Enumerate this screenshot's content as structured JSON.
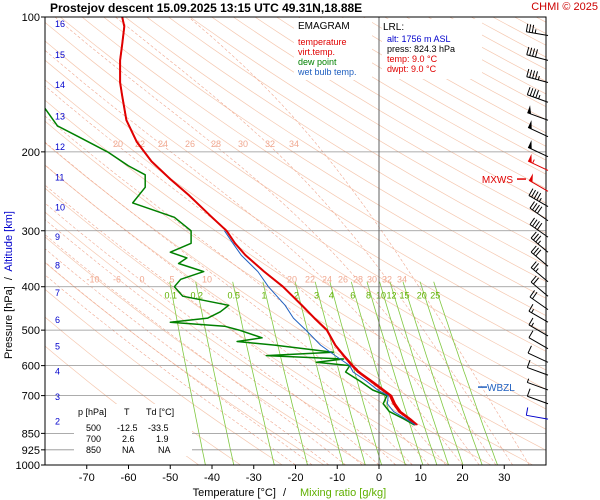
{
  "header": {
    "title": "Prostejov   descent   15.09.2025 13:15 UTC  49.31N,18.88E",
    "credit": "CHMI © 2025"
  },
  "legend": {
    "heading": "EMAGRAM",
    "items": [
      {
        "label": "temperature",
        "color": "#e00000"
      },
      {
        "label": "virt.temp.",
        "color": "#e00000"
      },
      {
        "label": "dew point",
        "color": "#008000"
      },
      {
        "label": "wet bulb temp.",
        "color": "#2060c0"
      }
    ]
  },
  "lrl": {
    "heading": "LRL:",
    "lines": [
      {
        "text": "alt: 1756 m ASL",
        "color": "#0000cc"
      },
      {
        "text": "press: 824.3 hPa",
        "color": "#000000"
      },
      {
        "text": "temp: 9.0 °C",
        "color": "#e00000"
      },
      {
        "text": "dwpt: 9.0 °C",
        "color": "#e00000"
      }
    ]
  },
  "table": {
    "headers": [
      "p [hPa]",
      "T",
      "Td [°C]"
    ],
    "rows": [
      [
        "500",
        "-12.5",
        "-33.5"
      ],
      [
        "700",
        "2.6",
        "1.9"
      ],
      [
        "850",
        "NA",
        "NA"
      ]
    ]
  },
  "markers": {
    "mxws": "MXWS",
    "wbzl": "WBZL"
  },
  "chart_data": {
    "type": "line",
    "xlabel": "Temperature [°C]",
    "xlabel_sep": "/",
    "xlabel2": "Mixing ratio [g/kg]",
    "ylabel": "Pressure [hPa]",
    "ylabel_sep": "/",
    "ylabel2": "Altitude [km]",
    "xlim": [
      -80,
      40
    ],
    "ylim": [
      1000,
      100
    ],
    "yscale": "log",
    "x_ticks": [
      "-70",
      "-60",
      "-50",
      "-40",
      "-30",
      "-20",
      "-10",
      "0",
      "10",
      "20",
      "30"
    ],
    "x_tick_values": [
      -70,
      -60,
      -50,
      -40,
      -30,
      -20,
      -10,
      0,
      10,
      20,
      30
    ],
    "y_ticks": [
      "100",
      "200",
      "300",
      "400",
      "500",
      "600",
      "700",
      "850",
      "925",
      "1000"
    ],
    "y_tick_values": [
      100,
      200,
      300,
      400,
      500,
      600,
      700,
      850,
      925,
      1000
    ],
    "altitude_ticks": [
      "2",
      "3",
      "4",
      "5",
      "6",
      "7",
      "8",
      "9",
      "10",
      "11",
      "12",
      "13",
      "14",
      "15",
      "16"
    ],
    "altitude_pressures": [
      795,
      701,
      616,
      541,
      472,
      411,
      357,
      308,
      265,
      227,
      194,
      166,
      141,
      121,
      103
    ],
    "mixing_ratio_labels": [
      "0.1",
      "0.2",
      "0.5",
      "1",
      "2",
      "3",
      "4",
      "6",
      "8",
      "10",
      "12",
      "15",
      "20",
      "25"
    ],
    "mixing_ratio_values": [
      0.1,
      0.2,
      0.5,
      1,
      2,
      3,
      4,
      6,
      8,
      10,
      12,
      15,
      20,
      25
    ],
    "adiabat_labels_upper": [
      "20",
      "22",
      "24",
      "26",
      "28",
      "30",
      "32",
      "34"
    ],
    "adiabat_labels_lower": [
      "-10",
      "-6",
      "0",
      "5",
      "10",
      "20",
      "22",
      "24",
      "26",
      "28",
      "30",
      "32",
      "34"
    ],
    "series": [
      {
        "name": "temperature",
        "color": "#e00000",
        "points": [
          [
            814,
            8.8
          ],
          [
            790,
            7.2
          ],
          [
            760,
            4.8
          ],
          [
            730,
            3.5
          ],
          [
            700,
            2.6
          ],
          [
            680,
            0.8
          ],
          [
            650,
            -2.0
          ],
          [
            620,
            -5.0
          ],
          [
            600,
            -6.5
          ],
          [
            570,
            -8.5
          ],
          [
            540,
            -10.5
          ],
          [
            500,
            -12.5
          ],
          [
            470,
            -15.5
          ],
          [
            440,
            -18.5
          ],
          [
            400,
            -23.0
          ],
          [
            370,
            -27.5
          ],
          [
            340,
            -32.0
          ],
          [
            320,
            -34.5
          ],
          [
            300,
            -36.5
          ],
          [
            280,
            -40.0
          ],
          [
            250,
            -45.5
          ],
          [
            230,
            -50.0
          ],
          [
            210,
            -54.5
          ],
          [
            190,
            -58.0
          ],
          [
            170,
            -60.5
          ],
          [
            150,
            -61.5
          ],
          [
            140,
            -62.0
          ],
          [
            125,
            -62.0
          ],
          [
            115,
            -61.5
          ],
          [
            105,
            -61.0
          ],
          [
            100,
            -61.5
          ]
        ]
      },
      {
        "name": "virt.temp.",
        "color": "#e00000",
        "points": [
          [
            814,
            9.2
          ],
          [
            790,
            7.6
          ],
          [
            760,
            5.2
          ],
          [
            730,
            3.9
          ],
          [
            700,
            3.0
          ],
          [
            680,
            1.2
          ],
          [
            650,
            -1.6
          ],
          [
            620,
            -4.7
          ],
          [
            600,
            -6.2
          ],
          [
            570,
            -8.3
          ],
          [
            540,
            -10.4
          ],
          [
            500,
            -12.4
          ],
          [
            470,
            -15.4
          ],
          [
            440,
            -18.4
          ],
          [
            400,
            -23.0
          ],
          [
            370,
            -27.5
          ],
          [
            340,
            -32.0
          ],
          [
            320,
            -34.5
          ],
          [
            300,
            -36.5
          ],
          [
            280,
            -40.0
          ],
          [
            250,
            -45.5
          ],
          [
            230,
            -50.0
          ],
          [
            210,
            -54.5
          ],
          [
            190,
            -58.0
          ],
          [
            170,
            -60.5
          ],
          [
            150,
            -61.5
          ],
          [
            140,
            -62.0
          ],
          [
            125,
            -62.0
          ],
          [
            115,
            -61.5
          ],
          [
            105,
            -61.0
          ],
          [
            100,
            -61.5
          ]
        ]
      },
      {
        "name": "dew point",
        "color": "#008000",
        "points": [
          [
            814,
            8.5
          ],
          [
            790,
            6.0
          ],
          [
            760,
            2.5
          ],
          [
            730,
            1.0
          ],
          [
            700,
            1.9
          ],
          [
            680,
            -1.5
          ],
          [
            650,
            -4.5
          ],
          [
            620,
            -8.0
          ],
          [
            600,
            -7.0
          ],
          [
            590,
            -15.0
          ],
          [
            580,
            -8.5
          ],
          [
            570,
            -27.0
          ],
          [
            560,
            -11.0
          ],
          [
            540,
            -25.0
          ],
          [
            530,
            -34.0
          ],
          [
            520,
            -28.0
          ],
          [
            500,
            -33.5
          ],
          [
            490,
            -37.0
          ],
          [
            480,
            -50.0
          ],
          [
            470,
            -41.0
          ],
          [
            455,
            -38.0
          ],
          [
            440,
            -36.0
          ],
          [
            420,
            -47.0
          ],
          [
            400,
            -49.0
          ],
          [
            385,
            -47.5
          ],
          [
            370,
            -42.0
          ],
          [
            355,
            -48.0
          ],
          [
            345,
            -46.0
          ],
          [
            335,
            -50.0
          ],
          [
            320,
            -45.0
          ],
          [
            300,
            -45.0
          ],
          [
            280,
            -49.0
          ],
          [
            260,
            -59.0
          ],
          [
            240,
            -56.0
          ],
          [
            225,
            -56.0
          ],
          [
            215,
            -60.0
          ],
          [
            200,
            -65.0
          ],
          [
            185,
            -72.0
          ],
          [
            175,
            -77.0
          ],
          [
            160,
            -80.0
          ]
        ]
      },
      {
        "name": "wet bulb temp.",
        "color": "#2060c0",
        "points": [
          [
            814,
            8.7
          ],
          [
            790,
            6.5
          ],
          [
            760,
            3.5
          ],
          [
            730,
            2.0
          ],
          [
            700,
            2.2
          ],
          [
            680,
            -0.3
          ],
          [
            650,
            -3.0
          ],
          [
            620,
            -6.2
          ],
          [
            600,
            -7.0
          ],
          [
            570,
            -10.5
          ],
          [
            540,
            -14.0
          ],
          [
            500,
            -17.5
          ],
          [
            470,
            -20.5
          ],
          [
            440,
            -22.5
          ],
          [
            400,
            -26.5
          ],
          [
            370,
            -29.0
          ],
          [
            340,
            -33.0
          ],
          [
            320,
            -35.0
          ],
          [
            300,
            -37.0
          ]
        ]
      }
    ],
    "wind_barbs": [
      {
        "p": 110,
        "dir": 280,
        "speed": 35
      },
      {
        "p": 125,
        "dir": 285,
        "speed": 40
      },
      {
        "p": 140,
        "dir": 285,
        "speed": 45
      },
      {
        "p": 155,
        "dir": 290,
        "speed": 45
      },
      {
        "p": 170,
        "dir": 290,
        "speed": 50
      },
      {
        "p": 185,
        "dir": 295,
        "speed": 50
      },
      {
        "p": 205,
        "dir": 295,
        "speed": 50
      },
      {
        "p": 220,
        "dir": 295,
        "speed": 55
      },
      {
        "p": 245,
        "dir": 300,
        "speed": 50
      },
      {
        "p": 265,
        "dir": 300,
        "speed": 45
      },
      {
        "p": 285,
        "dir": 305,
        "speed": 40
      },
      {
        "p": 310,
        "dir": 305,
        "speed": 40
      },
      {
        "p": 335,
        "dir": 310,
        "speed": 35
      },
      {
        "p": 360,
        "dir": 310,
        "speed": 30
      },
      {
        "p": 390,
        "dir": 310,
        "speed": 25
      },
      {
        "p": 420,
        "dir": 310,
        "speed": 20
      },
      {
        "p": 450,
        "dir": 305,
        "speed": 20
      },
      {
        "p": 480,
        "dir": 300,
        "speed": 15
      },
      {
        "p": 515,
        "dir": 300,
        "speed": 15
      },
      {
        "p": 550,
        "dir": 300,
        "speed": 10
      },
      {
        "p": 590,
        "dir": 295,
        "speed": 10
      },
      {
        "p": 630,
        "dir": 290,
        "speed": 10
      },
      {
        "p": 680,
        "dir": 290,
        "speed": 5
      },
      {
        "p": 730,
        "dir": 290,
        "speed": 10
      },
      {
        "p": 790,
        "dir": 280,
        "speed": 10
      }
    ],
    "mxws_pressure": 230,
    "wbzl_pressure": 670,
    "lrl_pressure": 824.3
  }
}
